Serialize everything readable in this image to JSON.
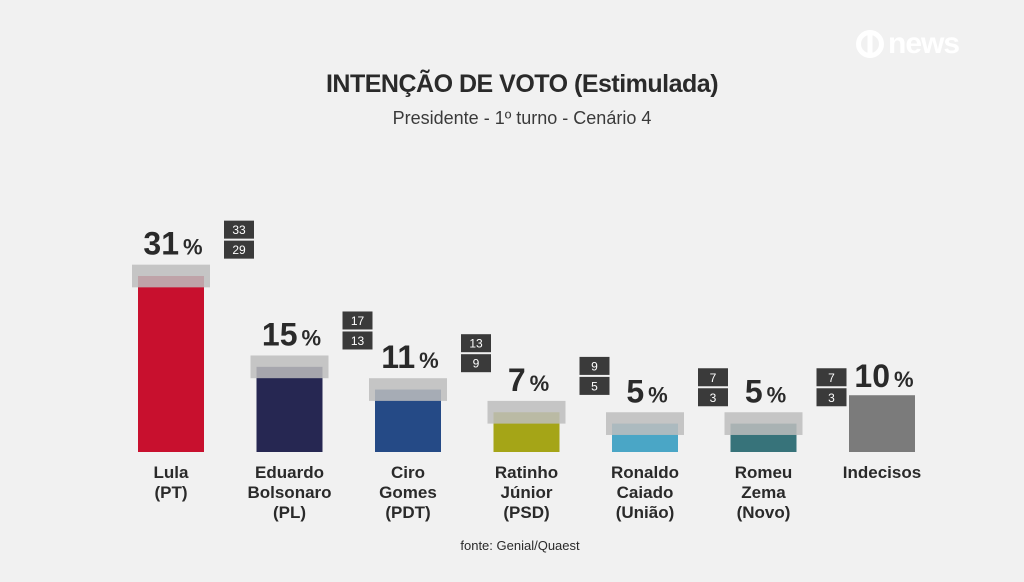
{
  "header": {
    "title": "INTENÇÃO DE VOTO (Estimulada)",
    "subtitle": "Presidente - 1º turno - Cenário 4",
    "logo_text": "news",
    "logo_icon": "globo-ring-icon"
  },
  "source": "fonte: Genial/Quaest",
  "colors": {
    "lula": "#c8102e",
    "bolsonaro": "#262752",
    "ciro": "#254a86",
    "ratinho": "#a5a517",
    "caiado": "#4aa6c6",
    "zema": "#37737a",
    "indecisos": "#7b7b7b",
    "margin_band": "#bdbdbd",
    "range_box": "#3a3a3a"
  },
  "chart_data": {
    "type": "bar",
    "title": "INTENÇÃO DE VOTO (Estimulada)",
    "subtitle": "Presidente - 1º turno - Cenário 4",
    "unit": "%",
    "categories": [
      [
        "Lula",
        "(PT)"
      ],
      [
        "Eduardo",
        "Bolsonaro",
        "(PL)"
      ],
      [
        "Ciro",
        "Gomes",
        "(PDT)"
      ],
      [
        "Ratinho",
        "Júnior",
        "(PSD)"
      ],
      [
        "Ronaldo",
        "Caiado",
        "(União)"
      ],
      [
        "Romeu",
        "Zema",
        "(Novo)"
      ],
      [
        "Indecisos"
      ]
    ],
    "values": [
      31,
      15,
      11,
      7,
      5,
      5,
      10
    ],
    "value_labels": [
      "31",
      "15",
      "11",
      "7",
      "5",
      "5",
      "10"
    ],
    "range_high": [
      "33",
      "17",
      "13",
      "9",
      "7",
      "7",
      null
    ],
    "range_low": [
      "29",
      "13",
      "9",
      "5",
      "3",
      "3",
      null
    ],
    "bar_colors": [
      "#c8102e",
      "#262752",
      "#254a86",
      "#a5a517",
      "#4aa6c6",
      "#37737a",
      "#7b7b7b"
    ],
    "ylim": [
      0,
      33
    ],
    "grid": false,
    "legend": "none"
  }
}
